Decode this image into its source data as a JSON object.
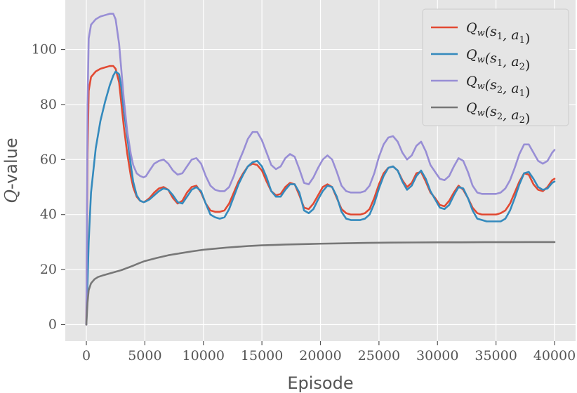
{
  "chart_data": {
    "type": "line",
    "title": "",
    "xlabel": "Episode",
    "ylabel_italic": "Q",
    "ylabel_rest": "-value",
    "xlim": [
      -1800,
      41800
    ],
    "ylim": [
      -6,
      118
    ],
    "xticks": [
      0,
      5000,
      10000,
      15000,
      20000,
      25000,
      30000,
      35000,
      40000
    ],
    "xtick_labels": [
      "0",
      "5000",
      "10000",
      "15000",
      "20000",
      "25000",
      "30000",
      "35000",
      "40000"
    ],
    "yticks": [
      0,
      20,
      40,
      60,
      80,
      100
    ],
    "ytick_labels": [
      "0",
      "20",
      "40",
      "60",
      "80",
      "100"
    ],
    "grid": true,
    "legend_position": "top-right",
    "series": [
      {
        "name": "Q_w(s_1, a_1)",
        "legend_main": "Q",
        "legend_sub": "w",
        "legend_args": "(s",
        "legend_arg1_sub": "1",
        "legend_mid": ", a",
        "legend_arg2_sub": "1",
        "legend_end": ")",
        "color": "#E24A33",
        "x": [
          0,
          100,
          200,
          400,
          800,
          1200,
          1600,
          2000,
          2300,
          2500,
          2800,
          3000,
          3200,
          3500,
          3800,
          4000,
          4300,
          4600,
          4900,
          5100,
          5400,
          5800,
          6200,
          6600,
          7000,
          7400,
          7800,
          8200,
          8600,
          9000,
          9400,
          9800,
          10200,
          10600,
          11000,
          11400,
          11800,
          12200,
          12600,
          13000,
          13400,
          13800,
          14200,
          14600,
          15000,
          15400,
          15800,
          16200,
          16600,
          17000,
          17400,
          17800,
          18200,
          18600,
          19000,
          19400,
          19800,
          20200,
          20600,
          21000,
          21400,
          21800,
          22200,
          22600,
          23000,
          23400,
          23800,
          24200,
          24600,
          25000,
          25400,
          25800,
          26200,
          26600,
          27000,
          27400,
          27800,
          28200,
          28600,
          29000,
          29400,
          29800,
          30200,
          30600,
          31000,
          31400,
          31800,
          32200,
          32600,
          33000,
          33400,
          33800,
          34200,
          34600,
          35000,
          35400,
          35800,
          36200,
          36600,
          37000,
          37400,
          37800,
          38200,
          38600,
          39000,
          39400,
          39800,
          40000
        ],
        "values": [
          0,
          62,
          85,
          90,
          92,
          93,
          93.5,
          94,
          94,
          93,
          88,
          80,
          72,
          62,
          54,
          50,
          46.5,
          45,
          44.5,
          45,
          46,
          48,
          49.5,
          50,
          49,
          46,
          44,
          45,
          48,
          50,
          50.5,
          48,
          44,
          41.5,
          41,
          41,
          41.5,
          44,
          48,
          52,
          55,
          57.5,
          58.5,
          58,
          56,
          52,
          48.5,
          47,
          47.5,
          50,
          51.5,
          51,
          47,
          42.5,
          42,
          44,
          47,
          50,
          51,
          50,
          46,
          42,
          40.5,
          40,
          40,
          40,
          40.5,
          42,
          46,
          51,
          55,
          57,
          57.5,
          56,
          52.5,
          50,
          51.5,
          55,
          55.5,
          52,
          48,
          46,
          43.5,
          43,
          45,
          48,
          50.5,
          49,
          46,
          42.5,
          40.5,
          40,
          40,
          40,
          40,
          40.5,
          41.5,
          44,
          48,
          52,
          55,
          54.5,
          51,
          49,
          48.5,
          50,
          52.5,
          53
        ]
      },
      {
        "name": "Q_w(s_1, a_2)",
        "legend_main": "Q",
        "legend_sub": "w",
        "legend_args": "(s",
        "legend_arg1_sub": "1",
        "legend_mid": ", a",
        "legend_arg2_sub": "2",
        "legend_end": ")",
        "color": "#348ABD",
        "x": [
          0,
          100,
          200,
          400,
          800,
          1200,
          1600,
          2000,
          2300,
          2500,
          2800,
          3000,
          3200,
          3500,
          3800,
          4000,
          4300,
          4600,
          4900,
          5100,
          5400,
          5800,
          6200,
          6600,
          7000,
          7400,
          7800,
          8200,
          8600,
          9000,
          9400,
          9800,
          10200,
          10600,
          11000,
          11400,
          11800,
          12200,
          12600,
          13000,
          13400,
          13800,
          14200,
          14600,
          15000,
          15400,
          15800,
          16200,
          16600,
          17000,
          17400,
          17800,
          18200,
          18600,
          19000,
          19400,
          19800,
          20200,
          20600,
          21000,
          21400,
          21800,
          22200,
          22600,
          23000,
          23400,
          23800,
          24200,
          24600,
          25000,
          25400,
          25800,
          26200,
          26600,
          27000,
          27400,
          27800,
          28200,
          28600,
          29000,
          29400,
          29800,
          30200,
          30600,
          31000,
          31400,
          31800,
          32200,
          32600,
          33000,
          33400,
          33800,
          34200,
          34600,
          35000,
          35400,
          35800,
          36200,
          36600,
          37000,
          37400,
          37800,
          38200,
          38600,
          39000,
          39400,
          39800,
          40000
        ],
        "values": [
          0,
          15,
          30,
          48,
          64,
          74,
          81,
          87,
          90.5,
          92,
          91,
          86,
          78,
          68,
          58,
          52,
          47,
          45,
          44.5,
          44.8,
          45.5,
          47,
          48.5,
          49.5,
          49,
          47,
          44.5,
          44,
          46.5,
          49,
          50,
          48.5,
          44,
          40,
          39,
          38.5,
          39,
          42,
          46.5,
          51,
          54.5,
          57.5,
          59,
          59.5,
          57.5,
          53.5,
          48.5,
          46.5,
          46.5,
          49,
          51,
          51,
          48,
          41.5,
          40.5,
          42,
          45.5,
          48.5,
          50.5,
          50,
          46.5,
          41,
          38.5,
          38,
          38,
          38,
          38.5,
          40,
          44,
          49.5,
          54,
          57,
          57.5,
          56,
          52,
          49,
          50.5,
          54,
          56,
          53,
          48.5,
          45.5,
          42.5,
          42,
          43.5,
          47,
          50,
          49.5,
          46,
          41.5,
          38.5,
          38,
          37.5,
          37.5,
          37.5,
          37.5,
          38.5,
          41.5,
          46,
          51,
          55,
          55.5,
          53,
          50,
          49,
          49.5,
          51.5,
          52
        ]
      },
      {
        "name": "Q_w(s_2, a_1)",
        "legend_main": "Q",
        "legend_sub": "w",
        "legend_args": "(s",
        "legend_arg1_sub": "2",
        "legend_mid": ", a",
        "legend_arg2_sub": "1",
        "legend_end": ")",
        "color": "#988ED5",
        "x": [
          0,
          100,
          200,
          400,
          800,
          1200,
          1600,
          2000,
          2300,
          2500,
          2800,
          3000,
          3200,
          3500,
          3800,
          4000,
          4300,
          4600,
          4900,
          5100,
          5400,
          5800,
          6200,
          6600,
          7000,
          7400,
          7800,
          8200,
          8600,
          9000,
          9400,
          9800,
          10200,
          10600,
          11000,
          11400,
          11800,
          12200,
          12600,
          13000,
          13400,
          13800,
          14200,
          14600,
          15000,
          15400,
          15800,
          16200,
          16600,
          17000,
          17400,
          17800,
          18200,
          18600,
          19000,
          19400,
          19800,
          20200,
          20600,
          21000,
          21400,
          21800,
          22200,
          22600,
          23000,
          23400,
          23800,
          24200,
          24600,
          25000,
          25400,
          25800,
          26200,
          26600,
          27000,
          27400,
          27800,
          28200,
          28600,
          29000,
          29400,
          29800,
          30200,
          30600,
          31000,
          31400,
          31800,
          32200,
          32600,
          33000,
          33400,
          33800,
          34200,
          34600,
          35000,
          35400,
          35800,
          36200,
          36600,
          37000,
          37400,
          37800,
          38200,
          38600,
          39000,
          39400,
          39800,
          40000
        ],
        "values": [
          0,
          80,
          104,
          109,
          111,
          112,
          112.5,
          113,
          113,
          111,
          102,
          92,
          82,
          70,
          62,
          58,
          55,
          54,
          53.5,
          54,
          56,
          58.5,
          59.5,
          60,
          58.5,
          56,
          54.5,
          55,
          57.5,
          60,
          60.5,
          58.5,
          54,
          50.5,
          49,
          48.5,
          48.5,
          50,
          54,
          59,
          63,
          67.5,
          70,
          70,
          67,
          62.5,
          58,
          56.5,
          57.5,
          60.5,
          62,
          61,
          56.5,
          51.5,
          51,
          53.5,
          57,
          60,
          61.5,
          60,
          55.5,
          50.5,
          48.5,
          48,
          48,
          48,
          48.5,
          50.5,
          55,
          61,
          65.5,
          68,
          68.5,
          66.5,
          62.5,
          60,
          61.5,
          65,
          66.5,
          63,
          58,
          55.5,
          53,
          52.5,
          54,
          57.5,
          60.5,
          59.5,
          55.5,
          50.5,
          48,
          47.5,
          47.5,
          47.5,
          47.5,
          48,
          49.5,
          52.5,
          57,
          62,
          65.5,
          65.5,
          62.5,
          59.5,
          58.5,
          59.5,
          62.5,
          63.5
        ]
      },
      {
        "name": "Q_w(s_2, a_2)",
        "legend_main": "Q",
        "legend_sub": "w",
        "legend_args": "(s",
        "legend_arg1_sub": "2",
        "legend_mid": ", a",
        "legend_arg2_sub": "2",
        "legend_end": ")",
        "color": "#777777",
        "x": [
          0,
          100,
          200,
          400,
          700,
          1000,
          1500,
          2000,
          2500,
          3000,
          3500,
          4000,
          4500,
          5000,
          6000,
          7000,
          8000,
          9000,
          10000,
          11000,
          12000,
          13000,
          14000,
          15000,
          16000,
          17000,
          18000,
          19000,
          20000,
          22000,
          24000,
          26000,
          28000,
          30000,
          32000,
          34000,
          36000,
          38000,
          40000
        ],
        "values": [
          0,
          8,
          12.5,
          15,
          16.5,
          17.3,
          18,
          18.6,
          19.2,
          19.8,
          20.6,
          21.4,
          22.3,
          23.1,
          24.2,
          25.2,
          25.9,
          26.6,
          27.2,
          27.6,
          28,
          28.3,
          28.6,
          28.8,
          28.95,
          29.1,
          29.2,
          29.3,
          29.4,
          29.55,
          29.7,
          29.8,
          29.85,
          29.9,
          29.9,
          29.95,
          29.95,
          30,
          30
        ]
      }
    ]
  }
}
